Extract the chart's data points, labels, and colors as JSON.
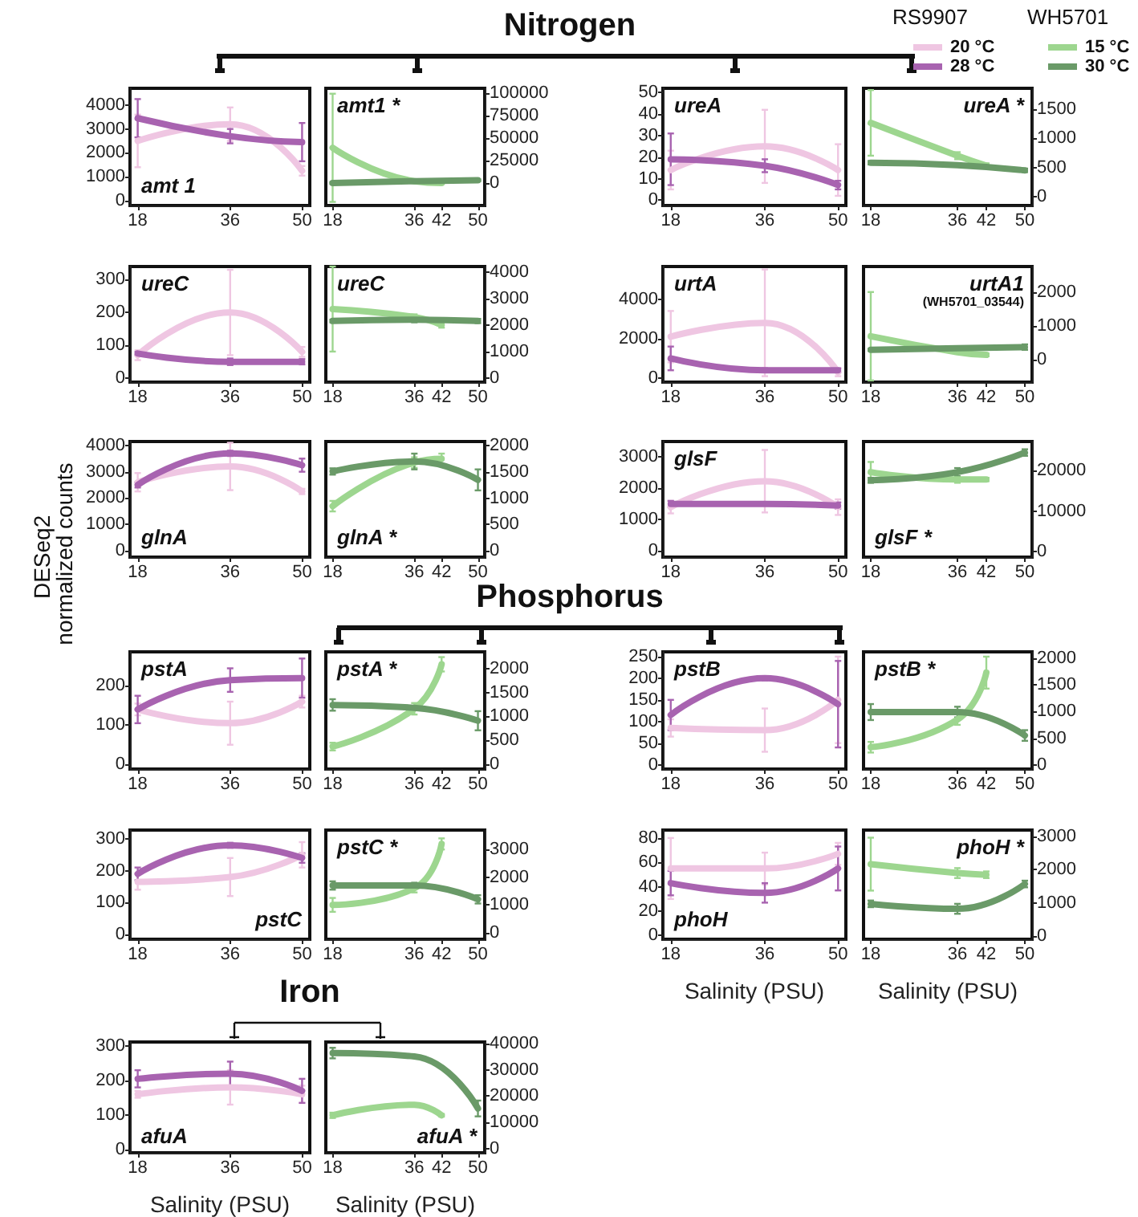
{
  "chart_data": [
    {
      "type": "line",
      "title": "amt 1",
      "annotations": [
        "Nitrogen"
      ],
      "xlim": [
        16.5,
        51.5
      ],
      "xticks": [
        18,
        36,
        50
      ],
      "ylim": [
        -200,
        4700
      ],
      "yticks": [
        0,
        1000,
        2000,
        3000,
        4000
      ],
      "series": [
        {
          "color": "#efc6e2",
          "x": [
            18,
            36,
            50
          ],
          "values": [
            2500,
            3200,
            1250
          ],
          "errors": [
            1100,
            700,
            200
          ]
        },
        {
          "color": "#a863b0",
          "x": [
            18,
            36,
            50
          ],
          "values": [
            3450,
            2700,
            2450
          ],
          "errors": [
            800,
            300,
            800
          ]
        }
      ]
    },
    {
      "type": "line",
      "title": "amt1 *",
      "xlim": [
        16.5,
        51.5
      ],
      "xticks": [
        18,
        36,
        42,
        50
      ],
      "ylim": [
        -25000,
        105000
      ],
      "yticks": [
        0,
        25000,
        50000,
        75000,
        100000
      ],
      "series": [
        {
          "color": "#9dd68f",
          "x": [
            18,
            36,
            42
          ],
          "values": [
            39000,
            2000,
            0
          ],
          "errors": [
            60000,
            1000,
            1000
          ]
        },
        {
          "color": "#6a9a68",
          "x": [
            18,
            36,
            50
          ],
          "values": [
            0,
            2000,
            3000
          ],
          "errors": [
            1000,
            1000,
            1000
          ]
        }
      ]
    },
    {
      "type": "line",
      "title": "ureA",
      "legend": "top right",
      "legend_title": "RS9907",
      "xlim": [
        16.5,
        51.5
      ],
      "xticks": [
        18,
        36,
        50
      ],
      "ylim": [
        -2.5,
        52
      ],
      "yticks": [
        0,
        10,
        20,
        30,
        40,
        50
      ],
      "series": [
        {
          "name": "20 °C",
          "color": "#efc6e2",
          "x": [
            18,
            36,
            50
          ],
          "values": [
            14,
            25,
            14
          ],
          "errors": [
            9,
            17,
            12
          ]
        },
        {
          "name": "28 °C",
          "color": "#a863b0",
          "x": [
            18,
            36,
            50
          ],
          "values": [
            19,
            16,
            7
          ],
          "errors": [
            12,
            3,
            2
          ]
        }
      ]
    },
    {
      "type": "line",
      "title": "ureA *",
      "legend": "top right",
      "legend_title": "WH5701",
      "xlim": [
        16.5,
        51.5
      ],
      "xticks": [
        18,
        36,
        42,
        50
      ],
      "ylim": [
        -150,
        1850
      ],
      "yticks": [
        0,
        500,
        1000,
        1500
      ],
      "series": [
        {
          "name": "15 °C",
          "color": "#9dd68f",
          "x": [
            18,
            36,
            42
          ],
          "values": [
            1260,
            700,
            530
          ],
          "errors": [
            560,
            60,
            40
          ]
        },
        {
          "name": "30 °C",
          "color": "#6a9a68",
          "x": [
            18,
            36,
            50
          ],
          "values": [
            580,
            540,
            450
          ],
          "errors": [
            30,
            30,
            30
          ]
        }
      ]
    },
    {
      "type": "line",
      "title": "ureC",
      "xlim": [
        16.5,
        51.5
      ],
      "xticks": [
        18,
        36,
        50
      ],
      "ylim": [
        -12,
        340
      ],
      "yticks": [
        0,
        100,
        200,
        300
      ],
      "series": [
        {
          "color": "#efc6e2",
          "x": [
            18,
            36,
            50
          ],
          "values": [
            70,
            200,
            80
          ],
          "errors": [
            15,
            130,
            15
          ]
        },
        {
          "color": "#a863b0",
          "x": [
            18,
            36,
            50
          ],
          "values": [
            75,
            50,
            50
          ],
          "errors": [
            5,
            10,
            8
          ]
        }
      ]
    },
    {
      "type": "line",
      "title": "ureC",
      "xlim": [
        16.5,
        51.5
      ],
      "xticks": [
        18,
        36,
        42,
        50
      ],
      "ylim": [
        -150,
        4200
      ],
      "yticks": [
        0,
        1000,
        2000,
        3000,
        4000
      ],
      "series": [
        {
          "color": "#9dd68f",
          "x": [
            18,
            36,
            42
          ],
          "values": [
            2600,
            2300,
            2000
          ],
          "errors": [
            1600,
            100,
            100
          ]
        },
        {
          "color": "#6a9a68",
          "x": [
            18,
            36,
            50
          ],
          "values": [
            2150,
            2200,
            2150
          ],
          "errors": [
            50,
            100,
            80
          ]
        }
      ]
    },
    {
      "type": "line",
      "title": "urtA",
      "xlim": [
        16.5,
        51.5
      ],
      "xticks": [
        18,
        36,
        50
      ],
      "ylim": [
        -200,
        5650
      ],
      "yticks": [
        0,
        2000,
        4000
      ],
      "series": [
        {
          "color": "#efc6e2",
          "x": [
            18,
            36,
            50
          ],
          "values": [
            2100,
            2800,
            300
          ],
          "errors": [
            1300,
            2700,
            200
          ]
        },
        {
          "color": "#a863b0",
          "x": [
            18,
            36,
            50
          ],
          "values": [
            1000,
            400,
            400
          ],
          "errors": [
            600,
            100,
            100
          ]
        }
      ]
    },
    {
      "type": "line",
      "title": "urtA1",
      "subtitle": "(WH5701_03544)",
      "xlim": [
        16.5,
        51.5
      ],
      "xticks": [
        18,
        36,
        42,
        50
      ],
      "ylim": [
        -650,
        2750
      ],
      "yticks": [
        0,
        1000,
        2000
      ],
      "series": [
        {
          "color": "#9dd68f",
          "x": [
            18,
            36,
            42
          ],
          "values": [
            700,
            230,
            150
          ],
          "errors": [
            1300,
            50,
            40
          ]
        },
        {
          "color": "#6a9a68",
          "x": [
            18,
            36,
            50
          ],
          "values": [
            300,
            350,
            380
          ],
          "errors": [
            30,
            30,
            80
          ]
        }
      ]
    },
    {
      "type": "line",
      "title": "glnA",
      "xlim": [
        16.5,
        51.5
      ],
      "xticks": [
        18,
        36,
        50
      ],
      "ylim": [
        -250,
        4150
      ],
      "yticks": [
        0,
        1000,
        2000,
        3000,
        4000
      ],
      "series": [
        {
          "color": "#efc6e2",
          "x": [
            18,
            36,
            50
          ],
          "values": [
            2600,
            3200,
            2250
          ],
          "errors": [
            350,
            900,
            100
          ]
        },
        {
          "color": "#a863b0",
          "x": [
            18,
            36,
            50
          ],
          "values": [
            2500,
            3700,
            3250
          ],
          "errors": [
            100,
            100,
            250
          ]
        }
      ]
    },
    {
      "type": "line",
      "title": "glnA *",
      "xlim": [
        16.5,
        51.5
      ],
      "xticks": [
        18,
        36,
        42,
        50
      ],
      "ylim": [
        -120,
        2080
      ],
      "yticks": [
        0,
        500,
        1000,
        1500,
        2000
      ],
      "series": [
        {
          "color": "#9dd68f",
          "x": [
            18,
            36,
            42
          ],
          "values": [
            850,
            1680,
            1750
          ],
          "errors": [
            100,
            100,
            100
          ]
        },
        {
          "color": "#6a9a68",
          "x": [
            18,
            36,
            50
          ],
          "values": [
            1510,
            1700,
            1350
          ],
          "errors": [
            60,
            150,
            200
          ]
        }
      ]
    },
    {
      "type": "line",
      "title": "glsF",
      "xlim": [
        16.5,
        51.5
      ],
      "xticks": [
        18,
        36,
        50
      ],
      "ylim": [
        -200,
        3500
      ],
      "yticks": [
        0,
        1000,
        2000,
        3000
      ],
      "series": [
        {
          "color": "#efc6e2",
          "x": [
            18,
            36,
            50
          ],
          "values": [
            1400,
            2230,
            1400
          ],
          "errors": [
            200,
            1000,
            250
          ]
        },
        {
          "color": "#a863b0",
          "x": [
            18,
            36,
            50
          ],
          "values": [
            1500,
            1500,
            1450
          ],
          "errors": [
            100,
            50,
            100
          ]
        }
      ]
    },
    {
      "type": "line",
      "title": "glsF *",
      "xlim": [
        16.5,
        51.5
      ],
      "xticks": [
        18,
        36,
        42,
        50
      ],
      "ylim": [
        -1300,
        27000
      ],
      "yticks": [
        0,
        10000,
        20000
      ],
      "series": [
        {
          "color": "#9dd68f",
          "x": [
            18,
            36,
            42
          ],
          "values": [
            19500,
            17700,
            17700
          ],
          "errors": [
            2500,
            800,
            400
          ]
        },
        {
          "color": "#6a9a68",
          "x": [
            18,
            36,
            50
          ],
          "values": [
            17500,
            19500,
            24300
          ],
          "errors": [
            600,
            1000,
            800
          ]
        }
      ]
    },
    {
      "type": "line",
      "title": "pstA",
      "annotations": [
        "Phosphorus"
      ],
      "ylabel": "DESeq2 normalized counts",
      "xlim": [
        16.5,
        51.5
      ],
      "xticks": [
        18,
        36,
        50
      ],
      "ylim": [
        -12,
        287
      ],
      "yticks": [
        0,
        100,
        200
      ],
      "series": [
        {
          "color": "#efc6e2",
          "x": [
            18,
            36,
            50
          ],
          "values": [
            140,
            105,
            160
          ],
          "errors": [
            15,
            55,
            15
          ]
        },
        {
          "color": "#a863b0",
          "x": [
            18,
            36,
            50
          ],
          "values": [
            140,
            215,
            220
          ],
          "errors": [
            35,
            30,
            50
          ]
        }
      ]
    },
    {
      "type": "line",
      "title": "pstA *",
      "xlim": [
        16.5,
        51.5
      ],
      "xticks": [
        18,
        36,
        42,
        50
      ],
      "ylim": [
        -100,
        2350
      ],
      "yticks": [
        0,
        500,
        1000,
        1500,
        2000
      ],
      "series": [
        {
          "color": "#9dd68f",
          "x": [
            18,
            36,
            42
          ],
          "values": [
            370,
            1160,
            2090
          ],
          "errors": [
            80,
            120,
            150
          ]
        },
        {
          "color": "#6a9a68",
          "x": [
            18,
            36,
            50
          ],
          "values": [
            1240,
            1180,
            910
          ],
          "errors": [
            120,
            null,
            200
          ]
        }
      ]
    },
    {
      "type": "line",
      "title": "pstB",
      "xlim": [
        16.5,
        51.5
      ],
      "xticks": [
        18,
        36,
        50
      ],
      "ylim": [
        -10,
        261
      ],
      "yticks": [
        0,
        50,
        100,
        150,
        200,
        250
      ],
      "series": [
        {
          "color": "#efc6e2",
          "x": [
            18,
            36,
            50
          ],
          "values": [
            85,
            80,
            150
          ],
          "errors": [
            20,
            50,
            100
          ]
        },
        {
          "color": "#a863b0",
          "x": [
            18,
            36,
            50
          ],
          "values": [
            115,
            200,
            140
          ],
          "errors": [
            35,
            5,
            100
          ]
        }
      ]
    },
    {
      "type": "line",
      "title": "pstB *",
      "xlim": [
        16.5,
        51.5
      ],
      "xticks": [
        18,
        36,
        42,
        50
      ],
      "ylim": [
        -80,
        2120
      ],
      "yticks": [
        0,
        500,
        1000,
        1500,
        2000
      ],
      "series": [
        {
          "color": "#9dd68f",
          "x": [
            18,
            36,
            42
          ],
          "values": [
            330,
            850,
            1730
          ],
          "errors": [
            100,
            100,
            300
          ]
        },
        {
          "color": "#6a9a68",
          "x": [
            18,
            36,
            50
          ],
          "values": [
            990,
            990,
            550
          ],
          "errors": [
            150,
            100,
            100
          ]
        }
      ]
    },
    {
      "type": "line",
      "title": "pstC",
      "xlim": [
        16.5,
        51.5
      ],
      "xticks": [
        18,
        36,
        50
      ],
      "ylim": [
        -16,
        328
      ],
      "yticks": [
        0,
        100,
        200,
        300
      ],
      "series": [
        {
          "color": "#efc6e2",
          "x": [
            18,
            36,
            50
          ],
          "values": [
            165,
            180,
            250
          ],
          "errors": [
            25,
            60,
            40
          ]
        },
        {
          "color": "#a863b0",
          "x": [
            18,
            36,
            50
          ],
          "values": [
            190,
            280,
            240
          ],
          "errors": [
            20,
            8,
            15
          ]
        }
      ]
    },
    {
      "type": "line",
      "title": "pstC *",
      "xlim": [
        16.5,
        51.5
      ],
      "xticks": [
        18,
        36,
        42,
        50
      ],
      "ylim": [
        -240,
        3700
      ],
      "yticks": [
        0,
        1000,
        2000,
        3000
      ],
      "series": [
        {
          "color": "#9dd68f",
          "x": [
            18,
            36,
            42
          ],
          "values": [
            1000,
            1600,
            3200
          ],
          "errors": [
            250,
            150,
            200
          ]
        },
        {
          "color": "#6a9a68",
          "x": [
            18,
            36,
            50
          ],
          "values": [
            1700,
            1700,
            1200
          ],
          "errors": [
            150,
            100,
            150
          ]
        }
      ]
    },
    {
      "type": "line",
      "title": "phoH",
      "xlabel": "Salinity (PSU)",
      "xlim": [
        16.5,
        51.5
      ],
      "xticks": [
        18,
        36,
        50
      ],
      "ylim": [
        -3,
        86.5
      ],
      "yticks": [
        0,
        20,
        40,
        60,
        80
      ],
      "series": [
        {
          "color": "#efc6e2",
          "x": [
            18,
            36,
            50
          ],
          "values": [
            55,
            55,
            67
          ],
          "errors": [
            25,
            13,
            9
          ]
        },
        {
          "color": "#a863b0",
          "x": [
            18,
            36,
            50
          ],
          "values": [
            43,
            35,
            55
          ],
          "errors": [
            10,
            8,
            18
          ]
        }
      ]
    },
    {
      "type": "line",
      "title": "phoH *",
      "xlabel": "Salinity (PSU)",
      "xlim": [
        16.5,
        51.5
      ],
      "xticks": [
        18,
        36,
        42,
        50
      ],
      "ylim": [
        -100,
        3200
      ],
      "yticks": [
        0,
        1000,
        2000,
        3000
      ],
      "series": [
        {
          "color": "#9dd68f",
          "x": [
            18,
            36,
            42
          ],
          "values": [
            2170,
            1900,
            1850
          ],
          "errors": [
            800,
            150,
            100
          ]
        },
        {
          "color": "#6a9a68",
          "x": [
            18,
            36,
            50
          ],
          "values": [
            970,
            820,
            1570
          ],
          "errors": [
            100,
            150,
            100
          ]
        }
      ]
    },
    {
      "type": "line",
      "title": "afuA",
      "annotations": [
        "Iron"
      ],
      "xlabel": "Salinity (PSU)",
      "xlim": [
        16.5,
        51.5
      ],
      "xticks": [
        18,
        36,
        50
      ],
      "ylim": [
        -10,
        312
      ],
      "yticks": [
        0,
        100,
        200,
        300
      ],
      "series": [
        {
          "color": "#efc6e2",
          "x": [
            18,
            36,
            50
          ],
          "values": [
            160,
            180,
            160
          ],
          "errors": [
            10,
            50,
            25
          ]
        },
        {
          "color": "#a863b0",
          "x": [
            18,
            36,
            50
          ],
          "values": [
            205,
            220,
            170
          ],
          "errors": [
            25,
            35,
            35
          ]
        }
      ]
    },
    {
      "type": "line",
      "title": "afuA *",
      "xlabel": "Salinity (PSU)",
      "xlim": [
        16.5,
        51.5
      ],
      "xticks": [
        18,
        36,
        42,
        50
      ],
      "ylim": [
        -1500,
        40500
      ],
      "yticks": [
        0,
        10000,
        20000,
        30000,
        40000
      ],
      "series": [
        {
          "color": "#9dd68f",
          "x": [
            18,
            36,
            42
          ],
          "values": [
            12700,
            16700,
            12700
          ],
          "errors": [
            1000,
            500,
            500
          ]
        },
        {
          "color": "#6a9a68",
          "x": [
            18,
            36,
            50
          ],
          "values": [
            36300,
            35000,
            15300
          ],
          "errors": [
            2000,
            500,
            3000
          ]
        }
      ]
    }
  ]
}
